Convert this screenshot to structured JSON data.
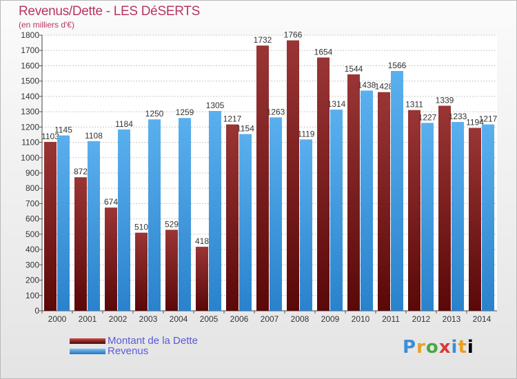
{
  "chart_data": {
    "type": "bar",
    "title": "Revenus/Dette - LES DéSERTS",
    "subtitle": "(en milliers d'€)",
    "categories": [
      "2000",
      "2001",
      "2002",
      "2003",
      "2004",
      "2005",
      "2006",
      "2007",
      "2008",
      "2009",
      "2010",
      "2011",
      "2012",
      "2013",
      "2014"
    ],
    "series": [
      {
        "name": "Montant de la Dette",
        "color": "#8b1a1a",
        "values": [
          1103,
          872,
          674,
          510,
          529,
          418,
          1217,
          1732,
          1766,
          1654,
          1544,
          1428,
          1311,
          1339,
          1194
        ],
        "labels": [
          "1103",
          "872",
          "674",
          "510",
          "529",
          "418",
          "1217",
          "1732",
          "1766",
          "1654",
          "1544",
          "1428",
          "1311",
          "1339",
          "1194"
        ]
      },
      {
        "name": "Revenus",
        "color": "#3a96e0",
        "values": [
          1145,
          1108,
          1184,
          1250,
          1259,
          1305,
          1154,
          1263,
          1119,
          1314,
          1438,
          1566,
          1227,
          1233,
          1217
        ],
        "labels": [
          "1145",
          "1108",
          "1184",
          "1250",
          "1259",
          "1305",
          "1154",
          "1263",
          "1119",
          "1314",
          "1438",
          "1566",
          "1227",
          "1233",
          "1217"
        ]
      }
    ],
    "ylim": [
      0,
      1800
    ],
    "yticks": [
      0,
      100,
      200,
      300,
      400,
      500,
      600,
      700,
      800,
      900,
      1000,
      1100,
      1200,
      1300,
      1400,
      1500,
      1600,
      1700,
      1800
    ],
    "grid": true,
    "legend": "bottom-left"
  },
  "logo": {
    "letters": [
      "P",
      "r",
      "o",
      "x",
      "i",
      "t",
      "i"
    ]
  }
}
